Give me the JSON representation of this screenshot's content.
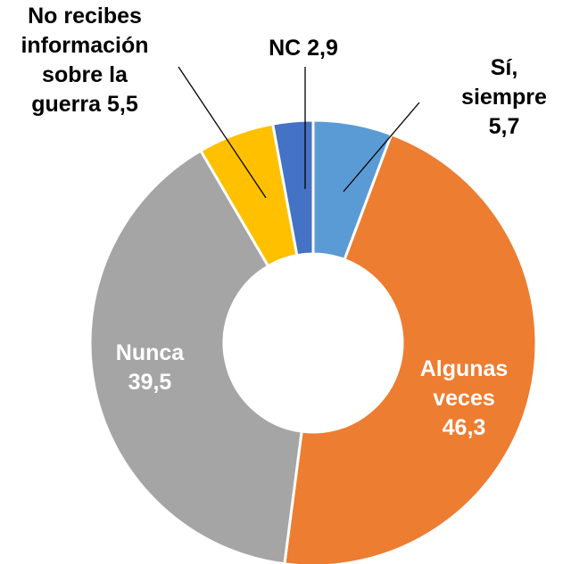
{
  "chart_data": {
    "type": "donut",
    "categories": [
      "Sí,\nsiempre",
      "Algunas\nveces",
      "Nunca",
      "No recibes\ninformación\nsobre la\nguerra",
      "NC"
    ],
    "values": [
      5.7,
      46.3,
      39.5,
      5.5,
      2.9
    ],
    "value_labels": [
      "5,7",
      "46,3",
      "39,5",
      "5,5",
      "2,9"
    ],
    "colors": [
      "#5b9bd5",
      "#ed7d31",
      "#a5a5a5",
      "#ffc000",
      "#4472c4"
    ]
  }
}
